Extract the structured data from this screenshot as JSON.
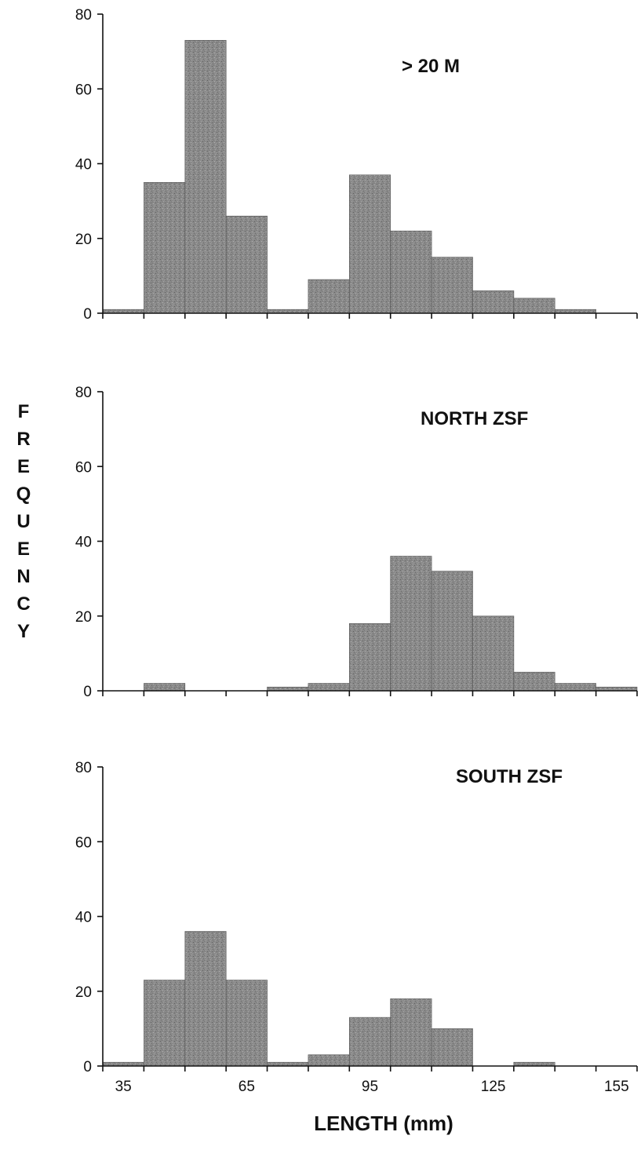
{
  "chart_data": {
    "type": "bar",
    "ylabel": "FREQUENCY",
    "xlabel": "LENGTH (mm)",
    "x_tick_labels": [
      "35",
      "65",
      "95",
      "125",
      "155"
    ],
    "x_ticks": [
      35,
      65,
      95,
      125,
      155
    ],
    "bin_width": 10,
    "bin_starts": [
      30,
      40,
      50,
      60,
      70,
      80,
      90,
      100,
      110,
      120,
      130,
      140,
      150
    ],
    "xlim": [
      30,
      160
    ],
    "ylim": [
      0,
      80
    ],
    "y_tick_labels": [
      "0",
      "20",
      "40",
      "60",
      "80"
    ],
    "y_ticks": [
      0,
      20,
      40,
      60,
      80
    ],
    "panels": [
      {
        "title": "> 20 M",
        "values": [
          1,
          35,
          73,
          26,
          1,
          9,
          37,
          22,
          15,
          6,
          4,
          1,
          0
        ]
      },
      {
        "title": "NORTH ZSF",
        "values": [
          0,
          2,
          0,
          0,
          1,
          2,
          18,
          36,
          32,
          20,
          5,
          2,
          1
        ]
      },
      {
        "title": "SOUTH ZSF",
        "values": [
          1,
          23,
          36,
          23,
          1,
          3,
          13,
          18,
          10,
          0,
          1,
          0,
          0
        ]
      }
    ]
  }
}
